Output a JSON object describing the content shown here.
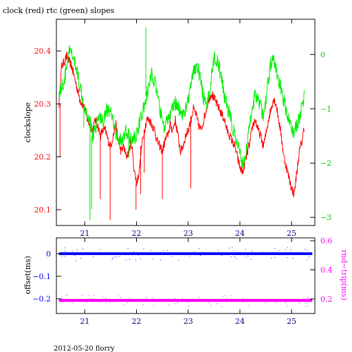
{
  "chart_data": [
    {
      "type": "line",
      "title": "clock (red) rtc (green) slopes",
      "ylabel": "clockslope",
      "xlim": [
        20.45,
        25.45
      ],
      "ylim_left": [
        20.07,
        20.46
      ],
      "ylim_right": [
        -3.15,
        0.65
      ],
      "x_ticks": [
        21,
        22,
        23,
        24,
        25
      ],
      "x_tick_labels": [
        "21",
        "22",
        "23",
        "24",
        "25"
      ],
      "y_ticks_left": [
        20.1,
        20.2,
        20.3,
        20.4
      ],
      "y_tick_labels_left": [
        "20.1",
        "20.2",
        "20.3",
        "20.4"
      ],
      "y_ticks_right": [
        -3,
        -2,
        -1,
        0
      ],
      "y_tick_labels_right": [
        "−3",
        "−2",
        "−1",
        "0"
      ],
      "colors": {
        "clock": "#ff0000",
        "rtc": "#00ee00",
        "axes": "#000000",
        "left_ticks": "#ff0000",
        "right_ticks": "#00cc00",
        "x_ticks": "#000080"
      },
      "series": [
        {
          "axis": "left",
          "color": "#ff0000",
          "x": [
            20.5,
            20.55,
            20.6,
            20.65,
            20.7,
            20.75,
            20.8,
            20.85,
            20.9,
            20.95,
            21.0,
            21.05,
            21.1,
            21.15,
            21.2,
            21.25,
            21.3,
            21.35,
            21.4,
            21.45,
            21.5,
            21.55,
            21.6,
            21.65,
            21.7,
            21.75,
            21.8,
            21.85,
            21.9,
            21.95,
            22.0,
            22.05,
            22.1,
            22.15,
            22.2,
            22.25,
            22.3,
            22.35,
            22.4,
            22.45,
            22.5,
            22.55,
            22.6,
            22.65,
            22.7,
            22.75,
            22.8,
            22.85,
            22.9,
            22.95,
            23.0,
            23.05,
            23.1,
            23.15,
            23.2,
            23.25,
            23.3,
            23.35,
            23.4,
            23.45,
            23.5,
            23.55,
            23.6,
            23.65,
            23.7,
            23.75,
            23.8,
            23.85,
            23.9,
            23.95,
            24.0,
            24.05,
            24.1,
            24.15,
            24.2,
            24.25,
            24.3,
            24.35,
            24.4,
            24.45,
            24.5,
            24.55,
            24.6,
            24.65,
            24.7,
            24.75,
            24.8,
            24.85,
            24.9,
            24.95,
            25.0,
            25.05,
            25.1,
            25.15,
            25.2,
            25.25
          ],
          "y": [
            20.3,
            20.37,
            20.38,
            20.39,
            20.38,
            20.37,
            20.35,
            20.33,
            20.31,
            20.3,
            20.29,
            20.27,
            20.26,
            20.25,
            20.27,
            20.26,
            20.24,
            20.25,
            20.25,
            20.23,
            20.22,
            20.24,
            20.26,
            20.23,
            20.21,
            20.22,
            20.2,
            20.21,
            20.23,
            20.18,
            20.15,
            20.17,
            20.22,
            20.25,
            20.27,
            20.27,
            20.26,
            20.25,
            20.23,
            20.22,
            20.21,
            20.23,
            20.24,
            20.26,
            20.25,
            20.27,
            20.24,
            20.21,
            20.22,
            20.24,
            20.25,
            20.27,
            20.29,
            20.28,
            20.26,
            20.25,
            20.27,
            20.29,
            20.31,
            20.32,
            20.31,
            20.3,
            20.29,
            20.28,
            20.27,
            20.25,
            20.24,
            20.23,
            20.22,
            20.2,
            20.18,
            20.17,
            20.19,
            20.21,
            20.23,
            20.26,
            20.27,
            20.25,
            20.24,
            20.22,
            20.24,
            20.27,
            20.29,
            20.31,
            20.3,
            20.27,
            20.24,
            20.2,
            20.18,
            20.16,
            20.14,
            20.13,
            20.17,
            20.21,
            20.23,
            20.26
          ],
          "spikes_x": [
            20.52,
            21.3,
            21.49,
            21.99,
            22.08,
            22.5,
            22.15,
            23.05
          ],
          "spikes_y": [
            20.2,
            20.12,
            20.08,
            20.1,
            20.13,
            20.12,
            20.17,
            20.14
          ]
        },
        {
          "axis": "right",
          "color": "#00ee00",
          "x": [
            20.5,
            20.55,
            20.6,
            20.65,
            20.7,
            20.75,
            20.8,
            20.85,
            20.9,
            20.95,
            21.0,
            21.05,
            21.1,
            21.15,
            21.2,
            21.25,
            21.3,
            21.35,
            21.4,
            21.45,
            21.5,
            21.55,
            21.6,
            21.65,
            21.7,
            21.75,
            21.8,
            21.85,
            21.9,
            21.95,
            22.0,
            22.05,
            22.1,
            22.15,
            22.2,
            22.25,
            22.3,
            22.35,
            22.4,
            22.45,
            22.5,
            22.55,
            22.6,
            22.65,
            22.7,
            22.75,
            22.8,
            22.85,
            22.9,
            22.95,
            23.0,
            23.05,
            23.1,
            23.15,
            23.2,
            23.25,
            23.3,
            23.35,
            23.4,
            23.45,
            23.5,
            23.55,
            23.6,
            23.65,
            23.7,
            23.75,
            23.8,
            23.85,
            23.9,
            23.95,
            24.0,
            24.05,
            24.1,
            24.15,
            24.2,
            24.25,
            24.3,
            24.35,
            24.4,
            24.45,
            24.5,
            24.55,
            24.6,
            24.65,
            24.7,
            24.75,
            24.8,
            24.85,
            24.9,
            24.95,
            25.0,
            25.05,
            25.1,
            25.15,
            25.2,
            25.25
          ],
          "y": [
            -0.7,
            -0.6,
            -0.5,
            -0.2,
            0.05,
            0.0,
            -0.15,
            -0.3,
            -0.55,
            -0.75,
            -0.95,
            -1.1,
            -1.2,
            -1.5,
            -1.35,
            -1.2,
            -1.15,
            -1.25,
            -1.05,
            -1.0,
            -1.1,
            -1.25,
            -1.45,
            -1.55,
            -1.6,
            -1.55,
            -1.4,
            -1.5,
            -1.6,
            -1.55,
            -1.5,
            -1.25,
            -1.15,
            -0.95,
            -0.75,
            -0.55,
            -0.35,
            -0.5,
            -0.75,
            -1.0,
            -1.25,
            -1.35,
            -1.2,
            -1.15,
            -1.0,
            -0.9,
            -0.95,
            -1.05,
            -1.1,
            -1.0,
            -0.85,
            -0.6,
            -0.35,
            -0.2,
            -0.3,
            -0.55,
            -0.8,
            -1.0,
            -0.75,
            -0.4,
            -0.05,
            -0.1,
            -0.25,
            -0.5,
            -0.75,
            -0.95,
            -1.1,
            -1.3,
            -1.5,
            -1.65,
            -1.85,
            -2.0,
            -1.9,
            -1.6,
            -1.2,
            -0.9,
            -0.75,
            -0.8,
            -0.95,
            -1.15,
            -0.9,
            -0.45,
            -0.15,
            -0.1,
            -0.3,
            -0.5,
            -0.65,
            -0.85,
            -1.05,
            -1.2,
            -1.35,
            -1.45,
            -1.3,
            -1.15,
            -0.95,
            -0.7
          ],
          "spikes_x": [
            21.1,
            21.13,
            22.18,
            21.85,
            20.98
          ],
          "spikes_y": [
            -3.05,
            -2.85,
            0.5,
            -1.9,
            -1.35
          ]
        }
      ]
    },
    {
      "type": "scatter",
      "xlabel": "",
      "ylabel_left": "offset(ms)",
      "ylabel_right": "rnd−trip(ms)",
      "xlim": [
        20.45,
        25.45
      ],
      "ylim_left": [
        -0.265,
        0.07
      ],
      "ylim_right": [
        0.1,
        0.62
      ],
      "x_ticks": [
        21,
        22,
        23,
        24,
        25
      ],
      "x_tick_labels": [
        "21",
        "22",
        "23",
        "24",
        "25"
      ],
      "y_ticks_left": [
        -0.2,
        -0.1,
        0
      ],
      "y_tick_labels_left": [
        "−0.2",
        "−0.1",
        "0"
      ],
      "y_ticks_right": [
        0.2,
        0.4,
        0.6
      ],
      "y_tick_labels_right": [
        "0.2",
        "0.4",
        "0.6"
      ],
      "colors": {
        "offset": "#0000ff",
        "roundtrip": "#ff00ff"
      },
      "series": [
        {
          "axis": "left",
          "color": "#0000ff",
          "x_range": [
            20.5,
            25.4
          ],
          "y": 0.0,
          "spread": 0.006
        },
        {
          "axis": "right",
          "color": "#ff00ff",
          "x_range": [
            20.5,
            25.4
          ],
          "y": 0.19,
          "spread": 0.01
        }
      ]
    }
  ],
  "footer": "2012-05-20 florry"
}
